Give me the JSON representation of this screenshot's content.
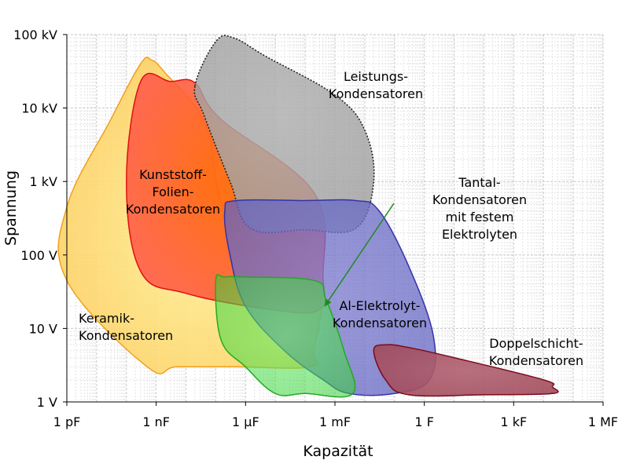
{
  "chart_data": {
    "type": "area",
    "xlabel": "Kapazität",
    "ylabel": "Spannung",
    "x_scale": "log",
    "y_scale": "log",
    "xlim": [
      1e-12,
      1000000.0
    ],
    "ylim": [
      1,
      100000
    ],
    "x_ticks": [
      {
        "value": 1e-12,
        "label": "1 pF"
      },
      {
        "value": 1e-09,
        "label": "1 nF"
      },
      {
        "value": 1e-06,
        "label": "1 µF"
      },
      {
        "value": 0.001,
        "label": "1 mF"
      },
      {
        "value": 1,
        "label": "1 F"
      },
      {
        "value": 1000.0,
        "label": "1 kF"
      },
      {
        "value": 1000000.0,
        "label": "1 MF"
      }
    ],
    "y_ticks": [
      {
        "value": 1,
        "label": "1 V"
      },
      {
        "value": 10,
        "label": "10 V"
      },
      {
        "value": 100,
        "label": "100 V"
      },
      {
        "value": 1000,
        "label": "1 kV"
      },
      {
        "value": 10000,
        "label": "10 kV"
      },
      {
        "value": 100000,
        "label": "100 kV"
      }
    ],
    "grid": true,
    "series": [
      {
        "name": "Keramik-Kondensatoren",
        "label_lines": [
          "Keramik-",
          "Kondensatoren"
        ],
        "fill": "#fcc54b",
        "stroke": "#f0a020",
        "outline": [
          [
            1e-12,
            450
          ],
          [
            3e-11,
            7000
          ],
          [
            3e-10,
            40000
          ],
          [
            7e-10,
            45000
          ],
          [
            2e-09,
            30000
          ],
          [
            4.5e-08,
            6000
          ],
          [
            3e-07,
            300
          ],
          [
            0.0002,
            40
          ],
          [
            0.0002,
            5
          ],
          [
            0.00015,
            3
          ],
          [
            5e-07,
            3
          ],
          [
            5e-09,
            3
          ],
          [
            5e-10,
            3
          ],
          [
            1e-12,
            45
          ]
        ]
      },
      {
        "name": "Kunststoff-Folien-Kondensatoren",
        "label_lines": [
          "Kunststoff-",
          "Folien-",
          "Kondensatoren"
        ],
        "fill": "#ff5a00",
        "stroke": "#e01010",
        "outline": [
          [
            1e-10,
            1000
          ],
          [
            3e-10,
            23000
          ],
          [
            3e-09,
            23000
          ],
          [
            2e-08,
            22000
          ],
          [
            1.5e-07,
            7000
          ],
          [
            0.0002,
            700
          ],
          [
            0.0004,
            50
          ],
          [
            0.0003,
            18
          ],
          [
            8e-06,
            18
          ],
          [
            1e-08,
            30
          ],
          [
            3e-10,
            60
          ]
        ]
      },
      {
        "name": "Leistungs-Kondensatoren",
        "label_lines": [
          "Leistungs-",
          "Kondensatoren"
        ],
        "fill": "#9a9a9a",
        "stroke": "#222222",
        "outline": [
          [
            2e-08,
            20000
          ],
          [
            1e-07,
            80000
          ],
          [
            4e-07,
            90000
          ],
          [
            5e-06,
            50000
          ],
          [
            0.001,
            15000
          ],
          [
            0.01,
            5000
          ],
          [
            0.02,
            1000
          ],
          [
            0.005,
            230
          ],
          [
            0.0001,
            220
          ],
          [
            1.5e-06,
            230
          ],
          [
            3e-07,
            1000
          ],
          [
            4e-08,
            8000
          ]
        ]
      },
      {
        "name": "Al-Elektrolyt-Kondensatoren",
        "label_lines": [
          "Al-Elektrolyt-",
          "Kondensatoren"
        ],
        "fill": "#7b7bd0",
        "stroke": "#3333aa",
        "outline": [
          [
            2e-07,
            400
          ],
          [
            5e-07,
            550
          ],
          [
            0.0001,
            550
          ],
          [
            0.005,
            550
          ],
          [
            0.03,
            400
          ],
          [
            0.3,
            70
          ],
          [
            2,
            8
          ],
          [
            1.5,
            2
          ],
          [
            0.1,
            1.3
          ],
          [
            0.003,
            1.3
          ],
          [
            0.0004,
            2
          ],
          [
            2e-05,
            5
          ],
          [
            1e-06,
            20
          ],
          [
            3e-07,
            100
          ]
        ]
      },
      {
        "name": "Tantal-Kondensatoren mit festem Elektrolyten",
        "label_lines": [
          "Tantal-",
          "Kondensatoren",
          "mit festem",
          "Elektrolyten"
        ],
        "fill": "#55ee55",
        "stroke": "#22aa22",
        "outline": [
          [
            1e-07,
            45
          ],
          [
            2e-07,
            50
          ],
          [
            1e-06,
            50
          ],
          [
            0.0002,
            45
          ],
          [
            0.0005,
            25
          ],
          [
            0.002,
            5
          ],
          [
            0.004,
            1.3
          ],
          [
            0.0001,
            1.3
          ],
          [
            1e-05,
            1.3
          ],
          [
            1e-06,
            3
          ],
          [
            1.5e-07,
            7
          ]
        ]
      },
      {
        "name": "Doppelschicht-Kondensatoren",
        "label_lines": [
          "Doppelschicht-",
          "Kondensatoren"
        ],
        "fill": "#a85060",
        "stroke": "#7a0a1a",
        "outline": [
          [
            0.02,
            5
          ],
          [
            0.05,
            6
          ],
          [
            0.3,
            5.5
          ],
          [
            10,
            4
          ],
          [
            10000.0,
            2
          ],
          [
            20000.0,
            1.6
          ],
          [
            20000.0,
            1.3
          ],
          [
            100,
            1.25
          ],
          [
            0.3,
            1.25
          ],
          [
            0.05,
            2
          ]
        ]
      }
    ],
    "annotation": {
      "text_series": "Tantal-Kondensatoren mit festem Elektrolyten",
      "arrow_from": [
        2,
        80
      ],
      "arrow_to": [
        0.00045,
        20
      ],
      "color": "#228822"
    }
  }
}
